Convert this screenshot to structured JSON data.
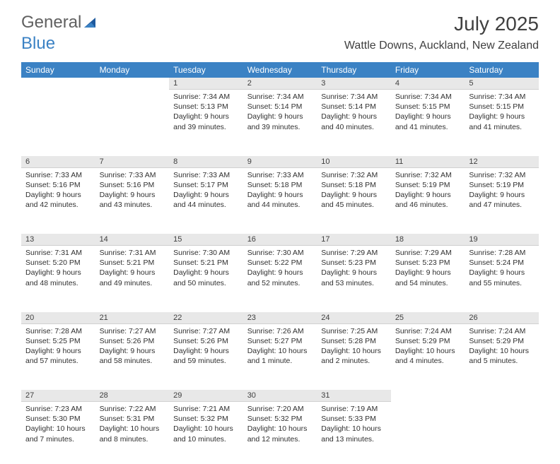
{
  "logo": {
    "text1": "General",
    "text2": "Blue"
  },
  "title": "July 2025",
  "location": "Wattle Downs, Auckland, New Zealand",
  "colors": {
    "header_bg": "#3b82c4",
    "header_fg": "#ffffff",
    "daynum_bg": "#e8e8e8",
    "text": "#303030",
    "logo_gray": "#606060",
    "logo_blue": "#3b82c4"
  },
  "fonts": {
    "title_size": 28,
    "location_size": 16,
    "dayhead_size": 12,
    "cell_size": 10.5
  },
  "dayHeaders": [
    "Sunday",
    "Monday",
    "Tuesday",
    "Wednesday",
    "Thursday",
    "Friday",
    "Saturday"
  ],
  "weeks": [
    [
      null,
      null,
      {
        "n": "1",
        "sr": "7:34 AM",
        "ss": "5:13 PM",
        "dl": "9 hours and 39 minutes."
      },
      {
        "n": "2",
        "sr": "7:34 AM",
        "ss": "5:14 PM",
        "dl": "9 hours and 39 minutes."
      },
      {
        "n": "3",
        "sr": "7:34 AM",
        "ss": "5:14 PM",
        "dl": "9 hours and 40 minutes."
      },
      {
        "n": "4",
        "sr": "7:34 AM",
        "ss": "5:15 PM",
        "dl": "9 hours and 41 minutes."
      },
      {
        "n": "5",
        "sr": "7:34 AM",
        "ss": "5:15 PM",
        "dl": "9 hours and 41 minutes."
      }
    ],
    [
      {
        "n": "6",
        "sr": "7:33 AM",
        "ss": "5:16 PM",
        "dl": "9 hours and 42 minutes."
      },
      {
        "n": "7",
        "sr": "7:33 AM",
        "ss": "5:16 PM",
        "dl": "9 hours and 43 minutes."
      },
      {
        "n": "8",
        "sr": "7:33 AM",
        "ss": "5:17 PM",
        "dl": "9 hours and 44 minutes."
      },
      {
        "n": "9",
        "sr": "7:33 AM",
        "ss": "5:18 PM",
        "dl": "9 hours and 44 minutes."
      },
      {
        "n": "10",
        "sr": "7:32 AM",
        "ss": "5:18 PM",
        "dl": "9 hours and 45 minutes."
      },
      {
        "n": "11",
        "sr": "7:32 AM",
        "ss": "5:19 PM",
        "dl": "9 hours and 46 minutes."
      },
      {
        "n": "12",
        "sr": "7:32 AM",
        "ss": "5:19 PM",
        "dl": "9 hours and 47 minutes."
      }
    ],
    [
      {
        "n": "13",
        "sr": "7:31 AM",
        "ss": "5:20 PM",
        "dl": "9 hours and 48 minutes."
      },
      {
        "n": "14",
        "sr": "7:31 AM",
        "ss": "5:21 PM",
        "dl": "9 hours and 49 minutes."
      },
      {
        "n": "15",
        "sr": "7:30 AM",
        "ss": "5:21 PM",
        "dl": "9 hours and 50 minutes."
      },
      {
        "n": "16",
        "sr": "7:30 AM",
        "ss": "5:22 PM",
        "dl": "9 hours and 52 minutes."
      },
      {
        "n": "17",
        "sr": "7:29 AM",
        "ss": "5:23 PM",
        "dl": "9 hours and 53 minutes."
      },
      {
        "n": "18",
        "sr": "7:29 AM",
        "ss": "5:23 PM",
        "dl": "9 hours and 54 minutes."
      },
      {
        "n": "19",
        "sr": "7:28 AM",
        "ss": "5:24 PM",
        "dl": "9 hours and 55 minutes."
      }
    ],
    [
      {
        "n": "20",
        "sr": "7:28 AM",
        "ss": "5:25 PM",
        "dl": "9 hours and 57 minutes."
      },
      {
        "n": "21",
        "sr": "7:27 AM",
        "ss": "5:26 PM",
        "dl": "9 hours and 58 minutes."
      },
      {
        "n": "22",
        "sr": "7:27 AM",
        "ss": "5:26 PM",
        "dl": "9 hours and 59 minutes."
      },
      {
        "n": "23",
        "sr": "7:26 AM",
        "ss": "5:27 PM",
        "dl": "10 hours and 1 minute."
      },
      {
        "n": "24",
        "sr": "7:25 AM",
        "ss": "5:28 PM",
        "dl": "10 hours and 2 minutes."
      },
      {
        "n": "25",
        "sr": "7:24 AM",
        "ss": "5:29 PM",
        "dl": "10 hours and 4 minutes."
      },
      {
        "n": "26",
        "sr": "7:24 AM",
        "ss": "5:29 PM",
        "dl": "10 hours and 5 minutes."
      }
    ],
    [
      {
        "n": "27",
        "sr": "7:23 AM",
        "ss": "5:30 PM",
        "dl": "10 hours and 7 minutes."
      },
      {
        "n": "28",
        "sr": "7:22 AM",
        "ss": "5:31 PM",
        "dl": "10 hours and 8 minutes."
      },
      {
        "n": "29",
        "sr": "7:21 AM",
        "ss": "5:32 PM",
        "dl": "10 hours and 10 minutes."
      },
      {
        "n": "30",
        "sr": "7:20 AM",
        "ss": "5:32 PM",
        "dl": "10 hours and 12 minutes."
      },
      {
        "n": "31",
        "sr": "7:19 AM",
        "ss": "5:33 PM",
        "dl": "10 hours and 13 minutes."
      },
      null,
      null
    ]
  ],
  "labels": {
    "sunrise": "Sunrise: ",
    "sunset": "Sunset: ",
    "daylight": "Daylight: "
  }
}
